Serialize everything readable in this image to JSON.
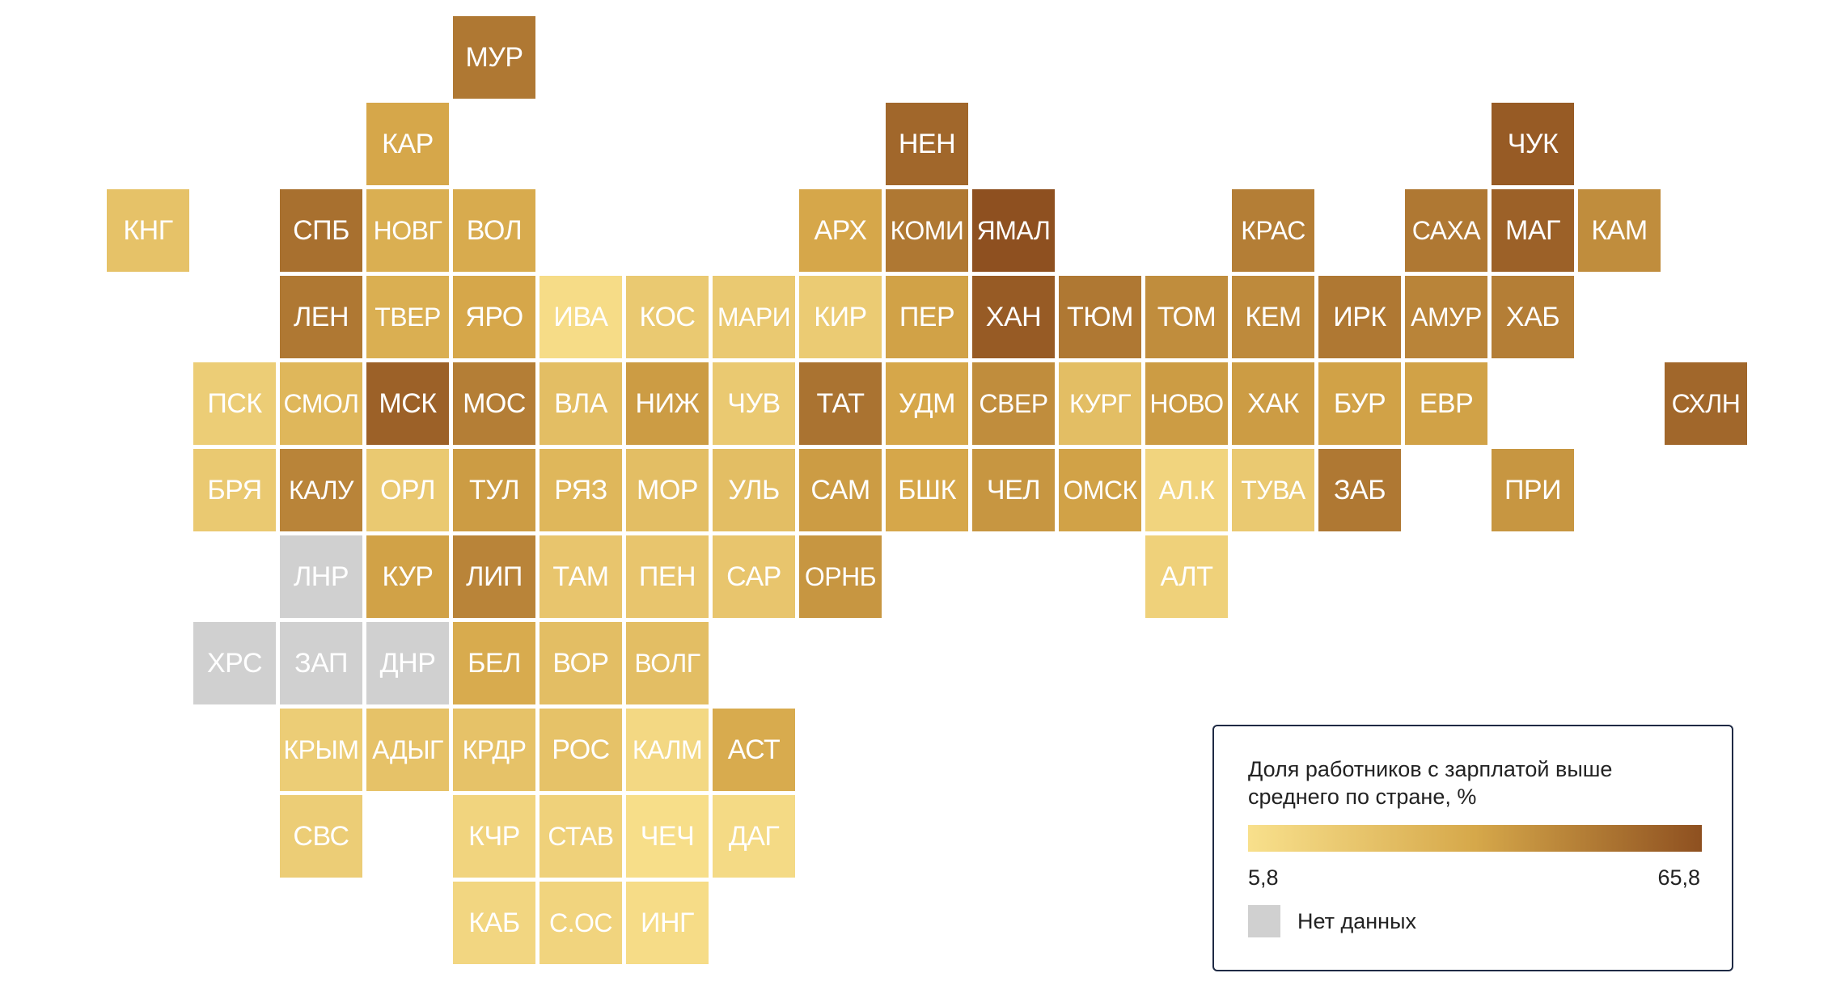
{
  "legend": {
    "title": "Доля работников с зарплатой выше среднего по стране, %",
    "min": "5,8",
    "max": "65,8",
    "nodata_label": "Нет данных"
  },
  "colors": {
    "scale_low": "#f8e08c",
    "scale_mid": "#d6a84a",
    "scale_high": "#8e5020",
    "nodata": "#d0d0d0",
    "text": "#ffffff",
    "legend_border": "#1f2a44"
  },
  "chart_data": {
    "type": "heatmap",
    "title": "Доля работников с зарплатой выше среднего по стране, %",
    "value_range": [
      5.8,
      65.8
    ],
    "legend_placement": "bottom-right",
    "regions": [
      {
        "label": "МУР",
        "value": 52,
        "col": 5,
        "row": 0
      },
      {
        "label": "КАР",
        "value": 36,
        "col": 4,
        "row": 1
      },
      {
        "label": "НЕН",
        "value": 58,
        "col": 10,
        "row": 1
      },
      {
        "label": "ЧУК",
        "value": 62,
        "col": 17,
        "row": 1
      },
      {
        "label": "КНГ",
        "value": 22,
        "col": 1,
        "row": 2
      },
      {
        "label": "СПБ",
        "value": 55,
        "col": 3,
        "row": 2
      },
      {
        "label": "НОВГ",
        "value": 32,
        "col": 4,
        "row": 2
      },
      {
        "label": "ВОЛ",
        "value": 34,
        "col": 5,
        "row": 2
      },
      {
        "label": "АРХ",
        "value": 36,
        "col": 9,
        "row": 2
      },
      {
        "label": "КОМИ",
        "value": 52,
        "col": 10,
        "row": 2
      },
      {
        "label": "ЯМАЛ",
        "value": 65.8,
        "col": 11,
        "row": 2
      },
      {
        "label": "КРАС",
        "value": 50,
        "col": 14,
        "row": 2
      },
      {
        "label": "САХА",
        "value": 52,
        "col": 16,
        "row": 2
      },
      {
        "label": "МАГ",
        "value": 60,
        "col": 17,
        "row": 2
      },
      {
        "label": "КАМ",
        "value": 45,
        "col": 18,
        "row": 2
      },
      {
        "label": "ЛЕН",
        "value": 52,
        "col": 3,
        "row": 3
      },
      {
        "label": "ТВЕР",
        "value": 32,
        "col": 4,
        "row": 3
      },
      {
        "label": "ЯРО",
        "value": 36,
        "col": 5,
        "row": 3
      },
      {
        "label": "ИВА",
        "value": 8,
        "col": 6,
        "row": 3
      },
      {
        "label": "КОС",
        "value": 18,
        "col": 7,
        "row": 3
      },
      {
        "label": "МАРИ",
        "value": 18,
        "col": 8,
        "row": 3
      },
      {
        "label": "КИР",
        "value": 17,
        "col": 9,
        "row": 3
      },
      {
        "label": "ПЕР",
        "value": 38,
        "col": 10,
        "row": 3
      },
      {
        "label": "ХАН",
        "value": 62,
        "col": 11,
        "row": 3
      },
      {
        "label": "ТЮМ",
        "value": 52,
        "col": 12,
        "row": 3
      },
      {
        "label": "ТОМ",
        "value": 45,
        "col": 13,
        "row": 3
      },
      {
        "label": "КЕМ",
        "value": 46,
        "col": 14,
        "row": 3
      },
      {
        "label": "ИРК",
        "value": 52,
        "col": 15,
        "row": 3
      },
      {
        "label": "АМУР",
        "value": 48,
        "col": 16,
        "row": 3
      },
      {
        "label": "ХАБ",
        "value": 50,
        "col": 17,
        "row": 3
      },
      {
        "label": "ПСК",
        "value": 16,
        "col": 2,
        "row": 4
      },
      {
        "label": "СМОЛ",
        "value": 28,
        "col": 3,
        "row": 4
      },
      {
        "label": "МСК",
        "value": 60,
        "col": 4,
        "row": 4
      },
      {
        "label": "МОС",
        "value": 50,
        "col": 5,
        "row": 4
      },
      {
        "label": "ВЛА",
        "value": 24,
        "col": 6,
        "row": 4
      },
      {
        "label": "НИЖ",
        "value": 40,
        "col": 7,
        "row": 4
      },
      {
        "label": "ЧУВ",
        "value": 18,
        "col": 8,
        "row": 4
      },
      {
        "label": "ТАТ",
        "value": 54,
        "col": 9,
        "row": 4
      },
      {
        "label": "УДМ",
        "value": 36,
        "col": 10,
        "row": 4
      },
      {
        "label": "СВЕР",
        "value": 45,
        "col": 11,
        "row": 4
      },
      {
        "label": "КУРГ",
        "value": 24,
        "col": 12,
        "row": 4
      },
      {
        "label": "НОВО",
        "value": 40,
        "col": 13,
        "row": 4
      },
      {
        "label": "ХАК",
        "value": 40,
        "col": 14,
        "row": 4
      },
      {
        "label": "БУР",
        "value": 38,
        "col": 15,
        "row": 4
      },
      {
        "label": "ЕВР",
        "value": 38,
        "col": 16,
        "row": 4
      },
      {
        "label": "СХЛН",
        "value": 58,
        "col": 19,
        "row": 4
      },
      {
        "label": "БРЯ",
        "value": 18,
        "col": 2,
        "row": 5
      },
      {
        "label": "КАЛУ",
        "value": 48,
        "col": 3,
        "row": 5
      },
      {
        "label": "ОРЛ",
        "value": 18,
        "col": 4,
        "row": 5
      },
      {
        "label": "ТУЛ",
        "value": 40,
        "col": 5,
        "row": 5
      },
      {
        "label": "РЯЗ",
        "value": 28,
        "col": 6,
        "row": 5
      },
      {
        "label": "МОР",
        "value": 24,
        "col": 7,
        "row": 5
      },
      {
        "label": "УЛЬ",
        "value": 24,
        "col": 8,
        "row": 5
      },
      {
        "label": "САМ",
        "value": 40,
        "col": 9,
        "row": 5
      },
      {
        "label": "БШК",
        "value": 36,
        "col": 10,
        "row": 5
      },
      {
        "label": "ЧЕЛ",
        "value": 42,
        "col": 11,
        "row": 5
      },
      {
        "label": "ОМСК",
        "value": 38,
        "col": 12,
        "row": 5
      },
      {
        "label": "АЛ.К",
        "value": 12,
        "col": 13,
        "row": 5
      },
      {
        "label": "ТУВА",
        "value": 18,
        "col": 14,
        "row": 5
      },
      {
        "label": "ЗАБ",
        "value": 52,
        "col": 15,
        "row": 5
      },
      {
        "label": "ПРИ",
        "value": 42,
        "col": 17,
        "row": 5
      },
      {
        "label": "ЛНР",
        "value": null,
        "col": 3,
        "row": 6
      },
      {
        "label": "КУР",
        "value": 38,
        "col": 4,
        "row": 6
      },
      {
        "label": "ЛИП",
        "value": 48,
        "col": 5,
        "row": 6
      },
      {
        "label": "ТАМ",
        "value": 20,
        "col": 6,
        "row": 6
      },
      {
        "label": "ПЕН",
        "value": 20,
        "col": 7,
        "row": 6
      },
      {
        "label": "САР",
        "value": 20,
        "col": 8,
        "row": 6
      },
      {
        "label": "ОРНБ",
        "value": 42,
        "col": 9,
        "row": 6
      },
      {
        "label": "АЛТ",
        "value": 14,
        "col": 13,
        "row": 6
      },
      {
        "label": "ХРС",
        "value": null,
        "col": 2,
        "row": 7
      },
      {
        "label": "ЗАП",
        "value": null,
        "col": 3,
        "row": 7
      },
      {
        "label": "ДНР",
        "value": null,
        "col": 4,
        "row": 7
      },
      {
        "label": "БЕЛ",
        "value": 34,
        "col": 5,
        "row": 7
      },
      {
        "label": "ВОР",
        "value": 24,
        "col": 6,
        "row": 7
      },
      {
        "label": "ВОЛГ",
        "value": 24,
        "col": 7,
        "row": 7
      },
      {
        "label": "КРЫМ",
        "value": 16,
        "col": 3,
        "row": 8
      },
      {
        "label": "АДЫГ",
        "value": 22,
        "col": 4,
        "row": 8
      },
      {
        "label": "КРДР",
        "value": 22,
        "col": 5,
        "row": 8
      },
      {
        "label": "РОС",
        "value": 22,
        "col": 6,
        "row": 8
      },
      {
        "label": "КАЛМ",
        "value": 10,
        "col": 7,
        "row": 8
      },
      {
        "label": "АСТ",
        "value": 34,
        "col": 8,
        "row": 8
      },
      {
        "label": "СВС",
        "value": 16,
        "col": 3,
        "row": 9
      },
      {
        "label": "КЧР",
        "value": 12,
        "col": 5,
        "row": 9
      },
      {
        "label": "СТАВ",
        "value": 14,
        "col": 6,
        "row": 9
      },
      {
        "label": "ЧЕЧ",
        "value": 7,
        "col": 7,
        "row": 9
      },
      {
        "label": "ДАГ",
        "value": 9,
        "col": 8,
        "row": 9
      },
      {
        "label": "КАБ",
        "value": 11,
        "col": 5,
        "row": 10
      },
      {
        "label": "С.ОС",
        "value": 12,
        "col": 6,
        "row": 10
      },
      {
        "label": "ИНГ",
        "value": 8,
        "col": 7,
        "row": 10
      }
    ]
  }
}
